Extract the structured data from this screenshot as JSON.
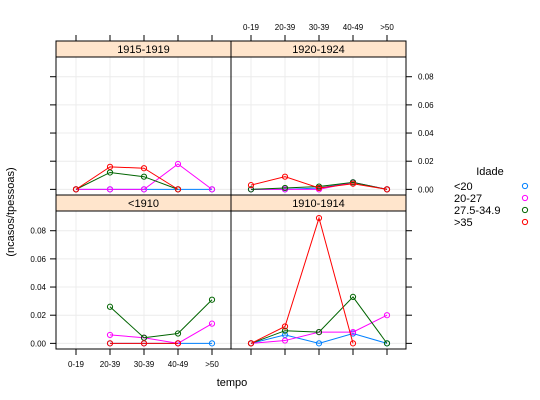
{
  "chart_data": {
    "type": "line",
    "xlabel": "tempo",
    "ylabel": "(ncasos/tpessoas)",
    "categories": [
      "0-19",
      "20-39",
      "30-39",
      "40-49",
      ">50"
    ],
    "y_ticks": [
      0.0,
      0.02,
      0.04,
      0.06,
      0.08
    ],
    "y_tick_labels": [
      "0.00",
      "0.02",
      "0.04",
      "0.06",
      "0.08"
    ],
    "ylim": [
      -0.004,
      0.094
    ],
    "grid": true,
    "legend": {
      "title": "Idade",
      "position": "right",
      "entries": [
        {
          "label": "<20",
          "color": "#0080ff"
        },
        {
          "label": "20-27",
          "color": "#ff00ff"
        },
        {
          "label": "27.5-34.9",
          "color": "#006400"
        },
        {
          "label": ">35",
          "color": "#ff0000"
        }
      ]
    },
    "panels": [
      {
        "title": "1915-1919",
        "series": [
          {
            "name": "<20",
            "color": "#0080ff",
            "values": [
              0.0,
              0.0,
              0.0,
              0.0,
              0.0
            ]
          },
          {
            "name": "20-27",
            "color": "#ff00ff",
            "values": [
              0.0,
              0.0,
              0.0,
              0.018,
              0.0
            ]
          },
          {
            "name": "27.5-34.9",
            "color": "#006400",
            "values": [
              0.0,
              0.012,
              0.009,
              0.0,
              null
            ]
          },
          {
            "name": ">35",
            "color": "#ff0000",
            "values": [
              0.0,
              0.016,
              0.015,
              0.0,
              null
            ]
          }
        ]
      },
      {
        "title": "1920-1924",
        "series": [
          {
            "name": "<20",
            "color": "#0080ff",
            "values": [
              0.0,
              0.0,
              0.001,
              0.005,
              0.0
            ]
          },
          {
            "name": "20-27",
            "color": "#ff00ff",
            "values": [
              0.0,
              0.0,
              0.0,
              0.005,
              0.0
            ]
          },
          {
            "name": "27.5-34.9",
            "color": "#006400",
            "values": [
              0.0,
              0.001,
              0.002,
              0.005,
              0.0
            ]
          },
          {
            "name": ">35",
            "color": "#ff0000",
            "values": [
              0.003,
              0.009,
              0.001,
              0.004,
              0.0
            ]
          }
        ]
      },
      {
        "title": "<1910",
        "series": [
          {
            "name": "<20",
            "color": "#0080ff",
            "values": [
              null,
              0.0,
              0.0,
              0.0,
              0.0
            ]
          },
          {
            "name": "20-27",
            "color": "#ff00ff",
            "values": [
              null,
              0.006,
              0.004,
              0.0,
              0.014
            ]
          },
          {
            "name": "27.5-34.9",
            "color": "#006400",
            "values": [
              null,
              0.026,
              0.004,
              0.007,
              0.031
            ]
          },
          {
            "name": ">35",
            "color": "#ff0000",
            "values": [
              null,
              0.0,
              0.0,
              0.0,
              null
            ]
          }
        ]
      },
      {
        "title": "1910-1914",
        "series": [
          {
            "name": "<20",
            "color": "#0080ff",
            "values": [
              0.0,
              0.006,
              0.0,
              0.007,
              0.0
            ]
          },
          {
            "name": "20-27",
            "color": "#ff00ff",
            "values": [
              0.0,
              0.002,
              0.008,
              0.008,
              0.02
            ]
          },
          {
            "name": "27.5-34.9",
            "color": "#006400",
            "values": [
              0.0,
              0.009,
              0.008,
              0.033,
              0.0
            ]
          },
          {
            "name": ">35",
            "color": "#ff0000",
            "values": [
              0.0,
              0.012,
              0.089,
              0.0,
              null
            ]
          }
        ]
      }
    ]
  }
}
